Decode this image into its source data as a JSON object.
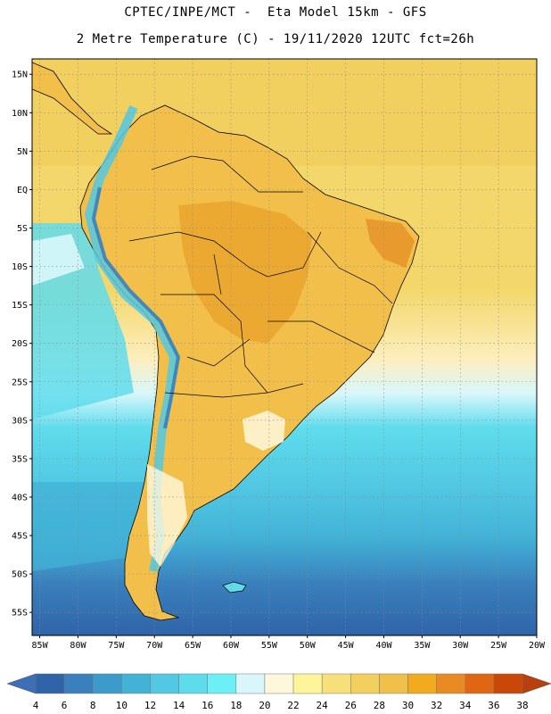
{
  "header": {
    "line1": "CPTEC/INPE/MCT -  Eta Model 15km - GFS",
    "line2": "2 Metre Temperature (C) - 19/11/2020 12UTC fct=26h"
  },
  "map": {
    "region": "South America",
    "y_axis_labels": [
      "15N",
      "10N",
      "5N",
      "EQ",
      "5S",
      "10S",
      "15S",
      "20S",
      "25S",
      "30S",
      "35S",
      "40S",
      "45S",
      "50S",
      "55S"
    ],
    "x_axis_labels": [
      "85W",
      "80W",
      "75W",
      "70W",
      "65W",
      "60W",
      "55W",
      "50W",
      "45W",
      "40W",
      "35W",
      "30W",
      "25W",
      "20W"
    ],
    "colors": {
      "land_warm": "#f2c04a",
      "land_hot": "#e9a12a",
      "ocean_tropical": "#f3d76a",
      "ocean_mid": "#5fd3e6",
      "ocean_cold": "#3a7fbf",
      "grid": "#9a9a9a"
    }
  },
  "colorbar": {
    "labels": [
      "4",
      "6",
      "8",
      "10",
      "12",
      "14",
      "16",
      "18",
      "20",
      "22",
      "24",
      "26",
      "28",
      "30",
      "32",
      "34",
      "36",
      "38"
    ],
    "colors": [
      "#2f64a8",
      "#3a80bd",
      "#3d9bcb",
      "#42b2d7",
      "#52c8e3",
      "#5fdcec",
      "#6cf0f5",
      "#d9f7fb",
      "#fff7dc",
      "#fef49a",
      "#f7e07a",
      "#f3cf5e",
      "#efc04a",
      "#f2ab1f",
      "#ea8a23",
      "#e06614",
      "#c94808"
    ],
    "low_arrow_color": "#3c6fb5",
    "high_arrow_color": "#b8400c"
  }
}
